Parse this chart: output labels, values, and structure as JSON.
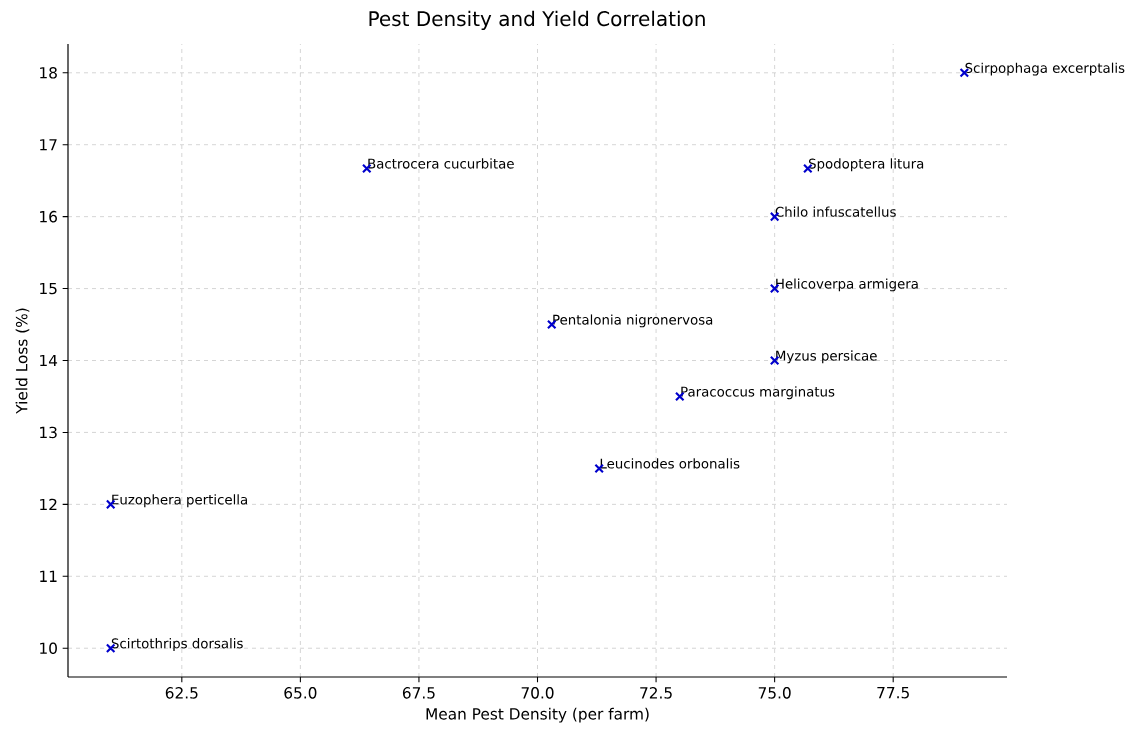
{
  "chart_data": {
    "type": "scatter",
    "title": "Pest Density and Yield Correlation",
    "xlabel": "Mean Pest Density (per farm)",
    "ylabel": "Yield Loss (%)",
    "x": [
      79,
      66.4,
      75.7,
      75,
      75,
      70.3,
      75,
      73,
      71.3,
      61,
      61
    ],
    "values": [
      18,
      16.67,
      16.67,
      16,
      15,
      14.5,
      14,
      13.5,
      12.5,
      12,
      10
    ],
    "color": "#0000cc",
    "marker": "cross",
    "grid": true,
    "xlim": [
      60.1,
      79.9
    ],
    "ylim": [
      9.6,
      18.4
    ],
    "xticks": [
      {
        "value": 62.5,
        "label": "62.5"
      },
      {
        "value": 65,
        "label": "65.0"
      },
      {
        "value": 67.5,
        "label": "67.5"
      },
      {
        "value": 70,
        "label": "70.0"
      },
      {
        "value": 72.5,
        "label": "72.5"
      },
      {
        "value": 75,
        "label": "75.0"
      },
      {
        "value": 77.5,
        "label": "77.5"
      }
    ],
    "yticks": [
      10,
      11,
      12,
      13,
      14,
      15,
      16,
      17,
      18
    ],
    "annotations": [
      {
        "text": "Scirpophaga excerptalis",
        "x": 79,
        "y": 18
      },
      {
        "text": "Bactrocera cucurbitae",
        "x": 66.4,
        "y": 16.67
      },
      {
        "text": "Spodoptera litura",
        "x": 75.7,
        "y": 16.67
      },
      {
        "text": "Chilo infuscatellus",
        "x": 75,
        "y": 16
      },
      {
        "text": "Helicoverpa armigera",
        "x": 75,
        "y": 15
      },
      {
        "text": "Pentalonia nigronervosa",
        "x": 70.3,
        "y": 14.5
      },
      {
        "text": "Myzus persicae",
        "x": 75,
        "y": 14
      },
      {
        "text": "Paracoccus marginatus",
        "x": 73,
        "y": 13.5
      },
      {
        "text": "Leucinodes orbonalis",
        "x": 71.3,
        "y": 12.5
      },
      {
        "text": "Euzophera perticella",
        "x": 61,
        "y": 12
      },
      {
        "text": "Scirtothrips dorsalis",
        "x": 61,
        "y": 10
      }
    ]
  }
}
